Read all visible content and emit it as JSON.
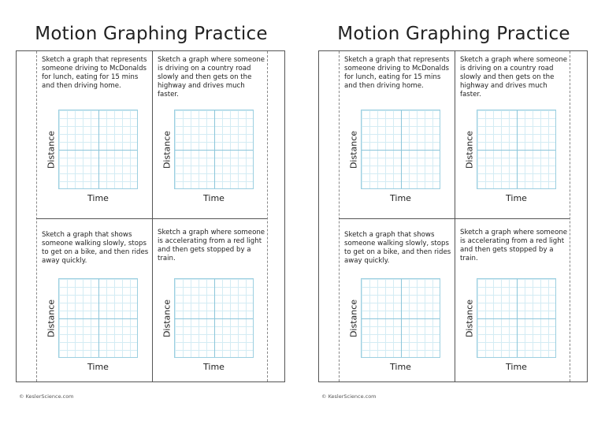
{
  "sheets": [
    {
      "title": "Motion Graphing Practice",
      "prompts": [
        "Sketch a graph that represents someone driving to McDonalds for lunch, eating for 15 mins and then driving home.",
        "Sketch a graph where someone is driving on a country road slowly and then gets on the highway and drives much faster.",
        "Sketch a graph that shows someone walking slowly, stops to get on a bike, and then rides away quickly.",
        "Sketch a graph where someone is accelerating from a red light and then gets stopped by a train."
      ],
      "footer": "© KeslerScience.com"
    },
    {
      "title": "Motion Graphing Practice",
      "prompts": [
        "Sketch a graph that represents someone driving to McDonalds for lunch, eating for 15 mins and then driving home.",
        "Sketch a graph where someone is driving on a country road slowly and then gets on the highway and drives much faster.",
        "Sketch a graph that shows someone walking slowly, stops to get on a bike, and then rides away quickly.",
        "Sketch a graph where someone is accelerating from a red light and then gets stopped by a train."
      ],
      "footer": "© KeslerScience.com"
    }
  ],
  "axis": {
    "y_label": "Distance",
    "x_label": "Time"
  }
}
